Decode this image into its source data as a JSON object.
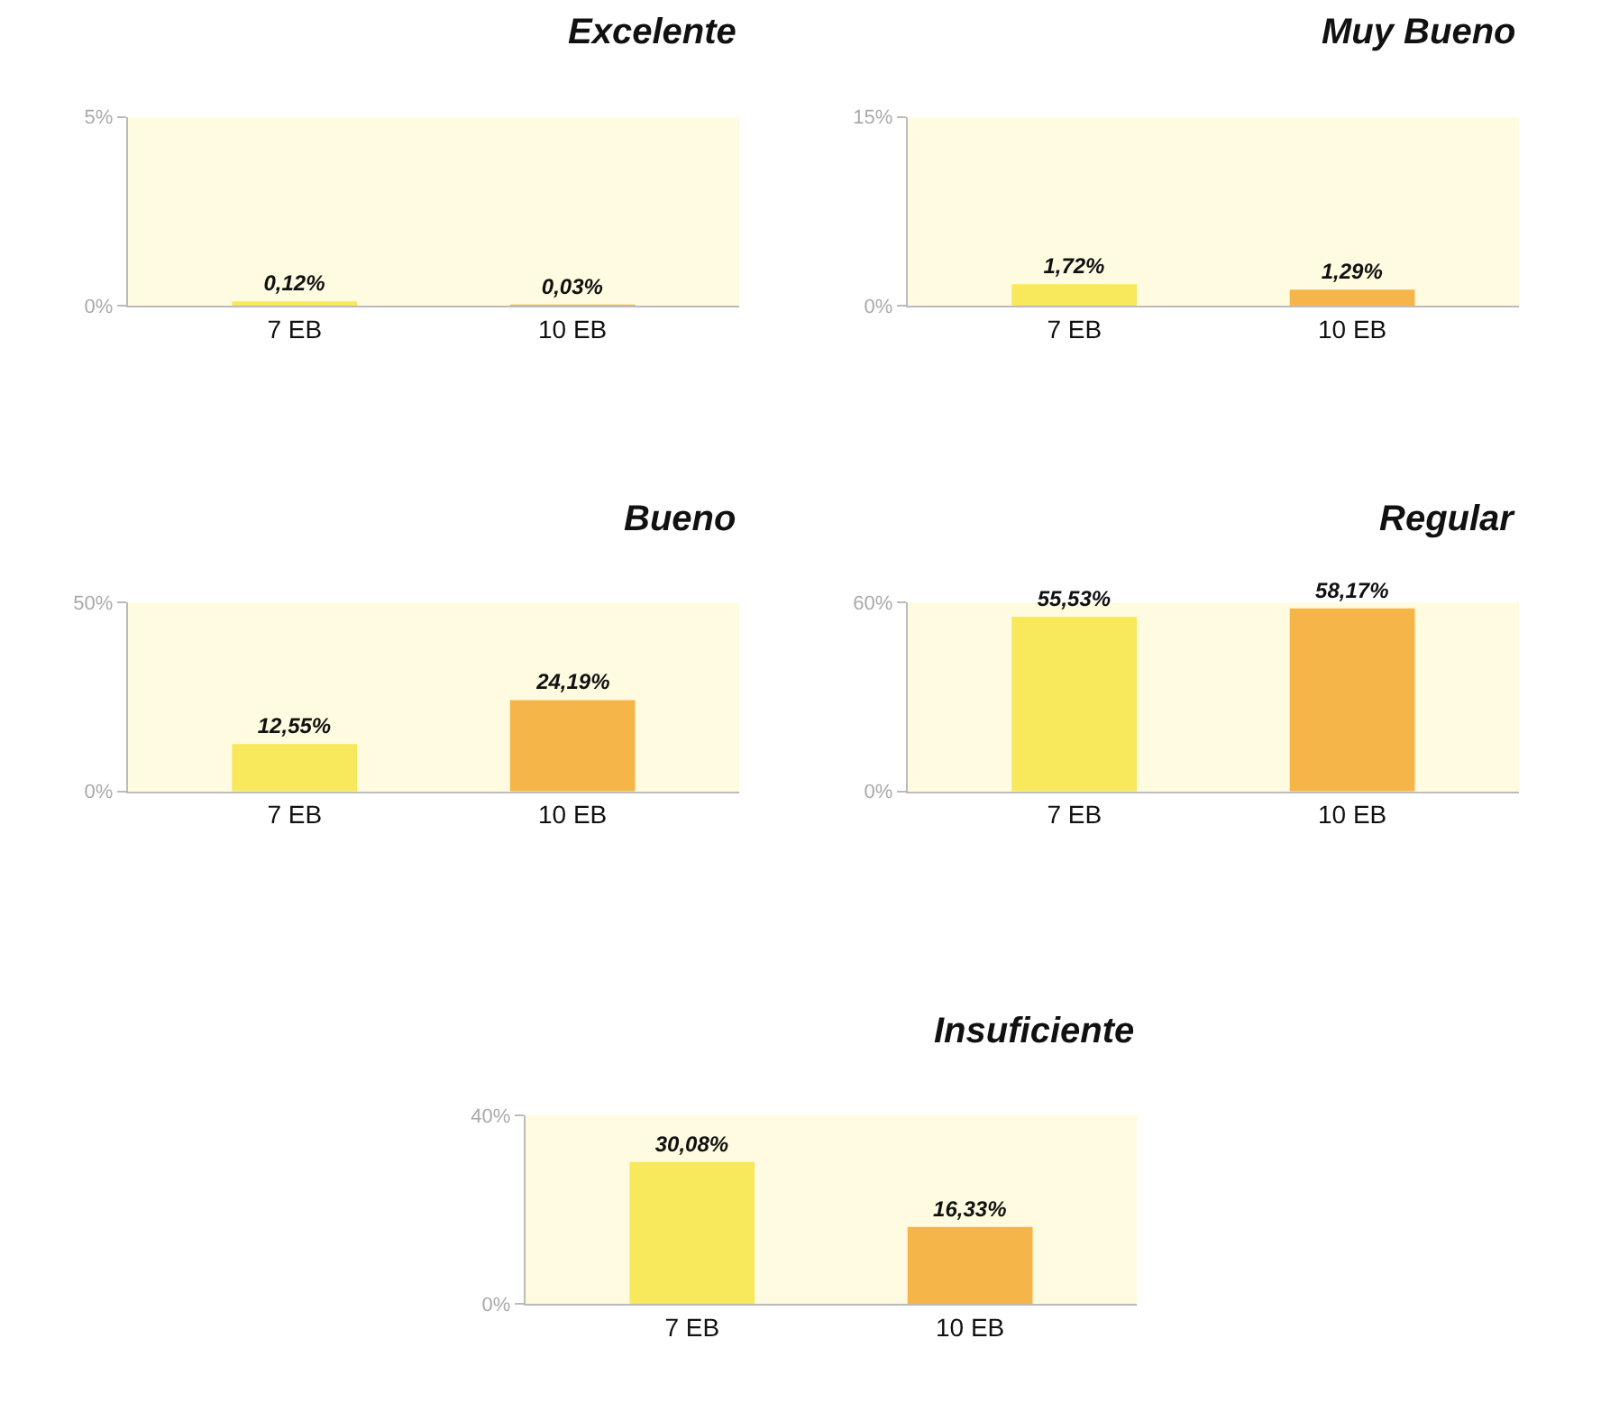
{
  "chart_data": [
    {
      "type": "bar",
      "title": "Excelente",
      "categories": [
        "7 EB",
        "10 EB"
      ],
      "values": [
        0.12,
        0.03
      ],
      "colors": [
        "#f7e85c",
        "#f5b549"
      ],
      "value_labels": [
        "0,12%",
        "0,03%"
      ],
      "ylim": [
        0,
        5
      ],
      "yticks": [
        {
          "value": 0,
          "label": "0%"
        },
        {
          "value": 5,
          "label": "5%"
        }
      ]
    },
    {
      "type": "bar",
      "title": "Muy Bueno",
      "categories": [
        "7 EB",
        "10 EB"
      ],
      "values": [
        1.72,
        1.29
      ],
      "colors": [
        "#f7e85c",
        "#f5b549"
      ],
      "value_labels": [
        "1,72%",
        "1,29%"
      ],
      "ylim": [
        0,
        15
      ],
      "yticks": [
        {
          "value": 0,
          "label": "0%"
        },
        {
          "value": 15,
          "label": "15%"
        }
      ]
    },
    {
      "type": "bar",
      "title": "Bueno",
      "categories": [
        "7 EB",
        "10 EB"
      ],
      "values": [
        12.55,
        24.19
      ],
      "colors": [
        "#f7e85c",
        "#f5b549"
      ],
      "value_labels": [
        "12,55%",
        "24,19%"
      ],
      "ylim": [
        0,
        50
      ],
      "yticks": [
        {
          "value": 0,
          "label": "0%"
        },
        {
          "value": 50,
          "label": "50%"
        }
      ]
    },
    {
      "type": "bar",
      "title": "Regular",
      "categories": [
        "7 EB",
        "10 EB"
      ],
      "values": [
        55.53,
        58.17
      ],
      "colors": [
        "#f7e85c",
        "#f5b549"
      ],
      "value_labels": [
        "55,53%",
        "58,17%"
      ],
      "ylim": [
        0,
        60
      ],
      "yticks": [
        {
          "value": 0,
          "label": "0%"
        },
        {
          "value": 60,
          "label": "60%"
        }
      ]
    },
    {
      "type": "bar",
      "title": "Insuficiente",
      "categories": [
        "7 EB",
        "10 EB"
      ],
      "values": [
        30.08,
        16.33
      ],
      "colors": [
        "#f7e85c",
        "#f5b549"
      ],
      "value_labels": [
        "30,08%",
        "16,33%"
      ],
      "ylim": [
        0,
        40
      ],
      "yticks": [
        {
          "value": 0,
          "label": "0%"
        },
        {
          "value": 40,
          "label": "40%"
        }
      ]
    }
  ]
}
